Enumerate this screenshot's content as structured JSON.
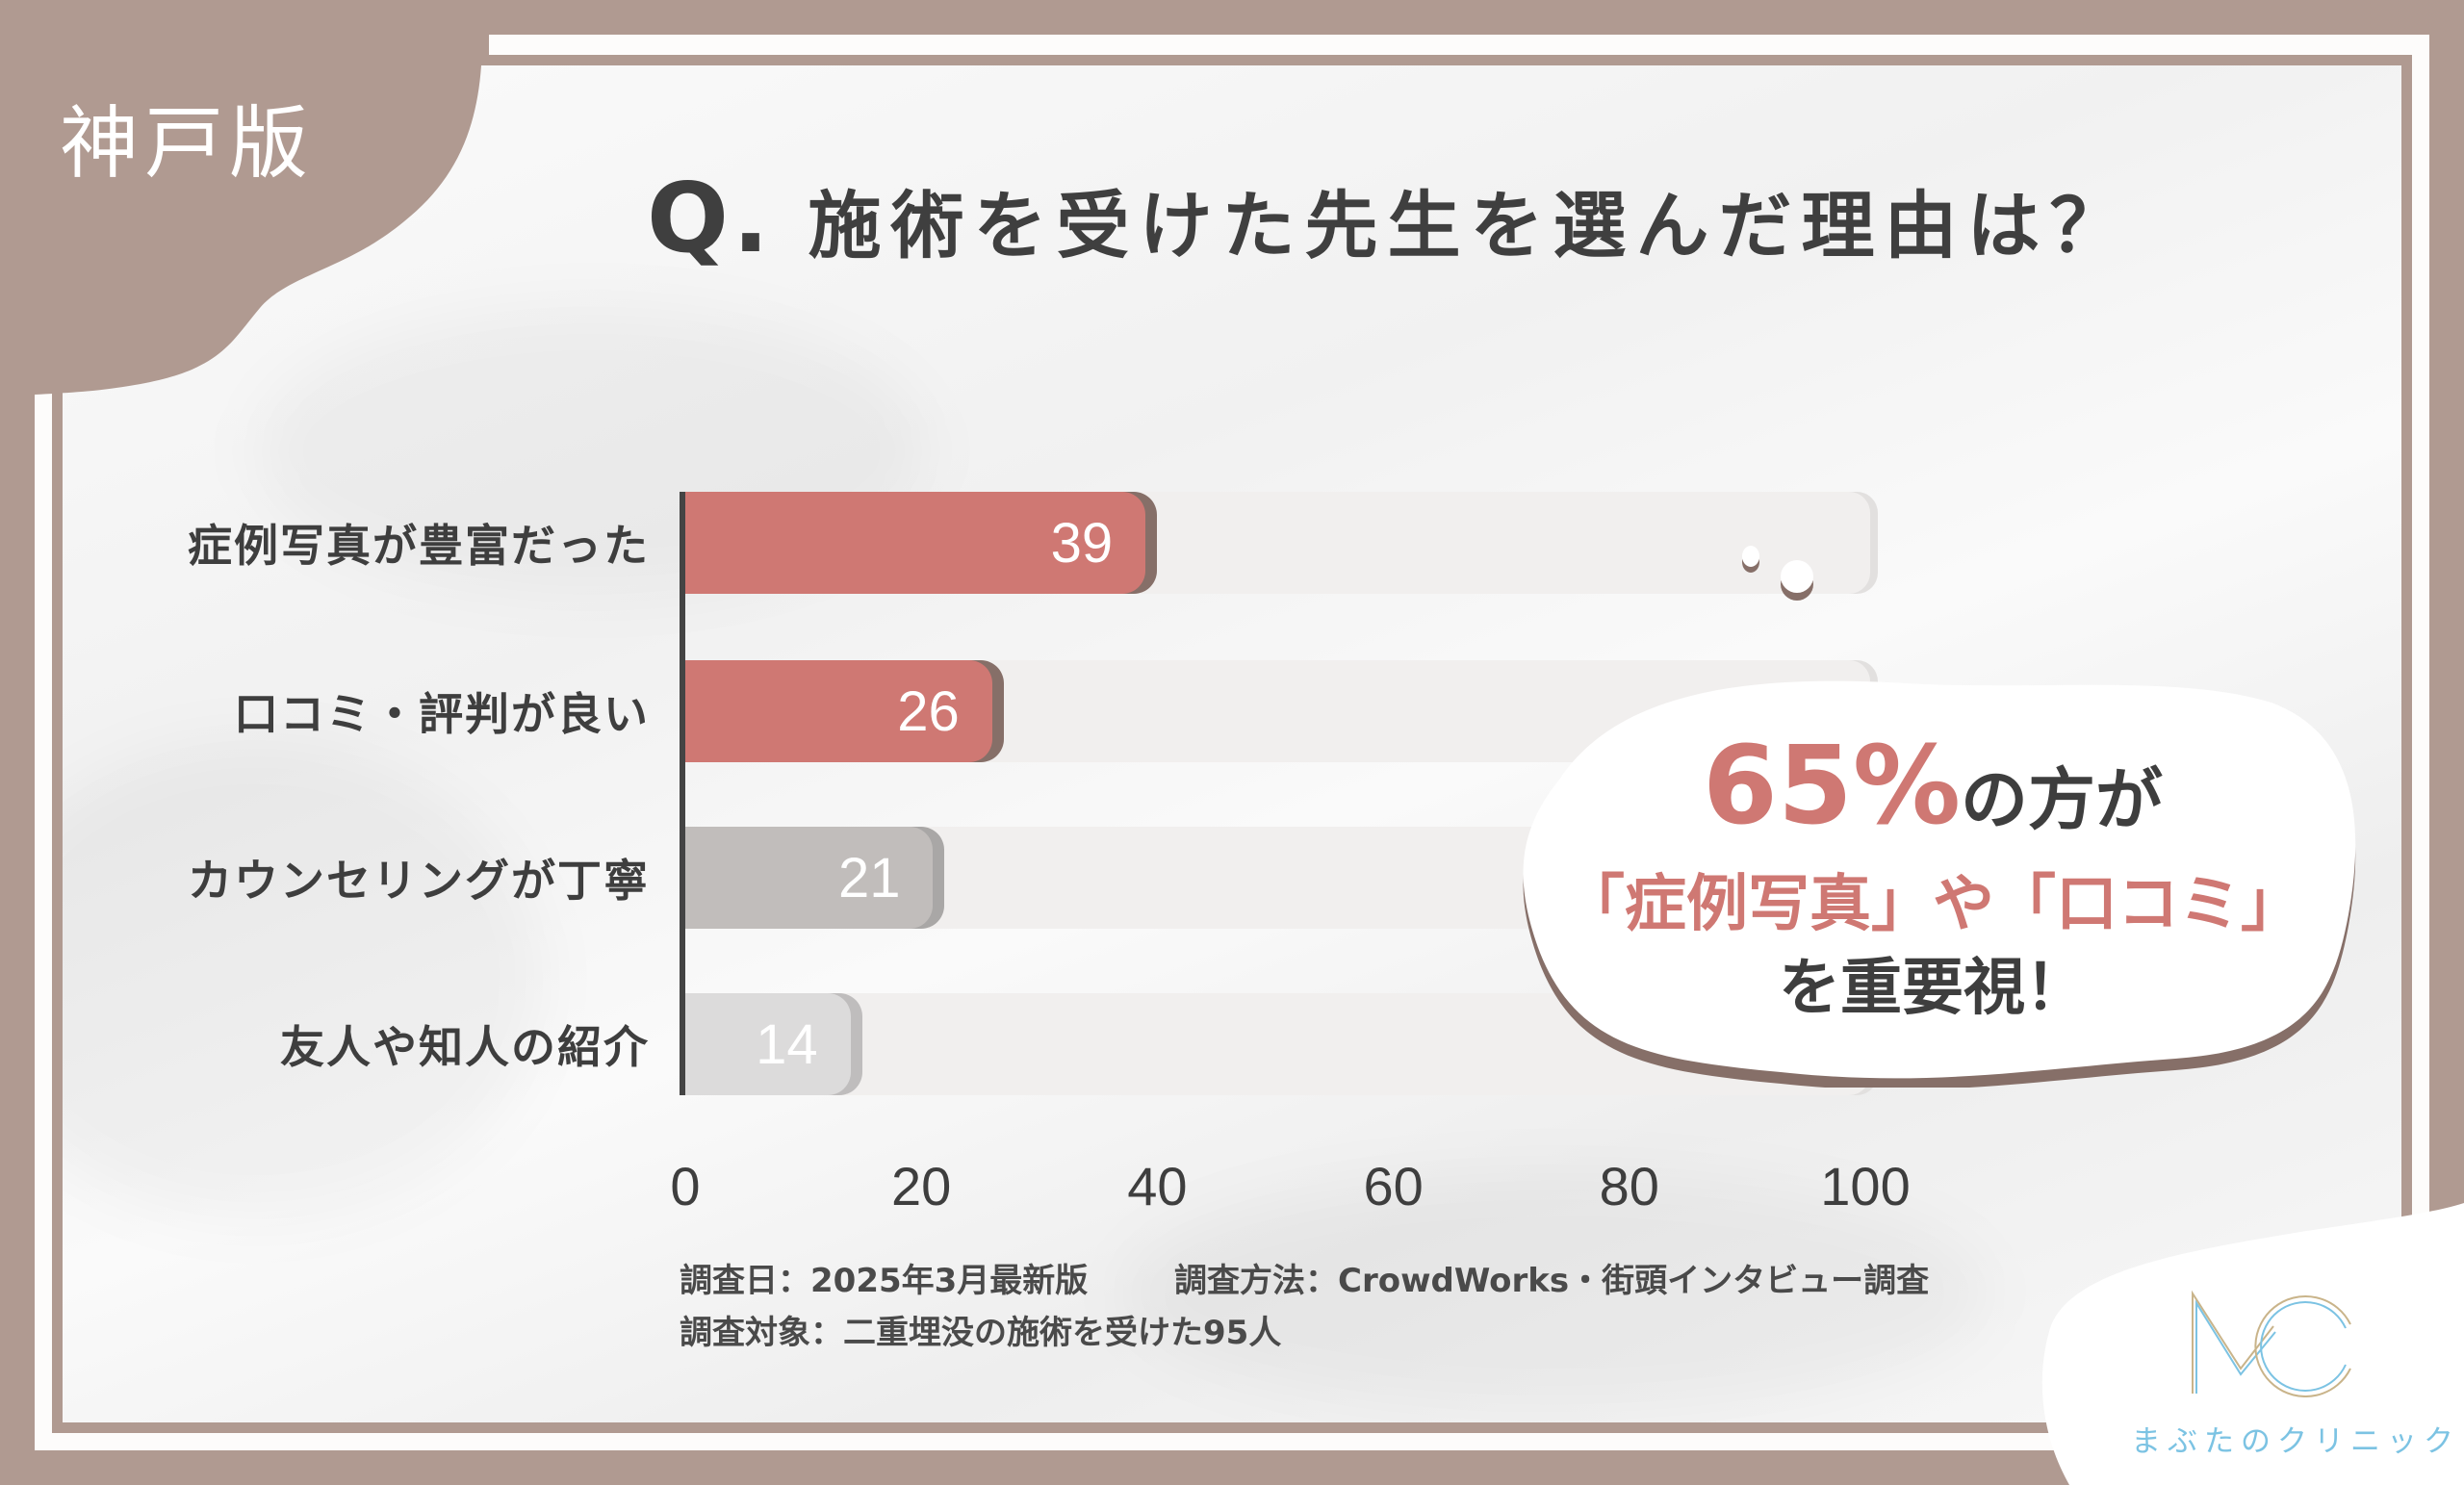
{
  "header": {
    "region_tag": "神戸版",
    "title_q": "Q.",
    "title_text": "施術を受けた先生を選んだ理由は？"
  },
  "chart_data": {
    "type": "bar",
    "orientation": "horizontal",
    "title": "Q. 施術を受けた先生を選んだ理由は？",
    "categories": [
      "症例写真が豊富だった",
      "口コミ・評判が良い",
      "カウンセリングが丁寧",
      "友人や知人の紹介"
    ],
    "values": [
      39,
      26,
      21,
      14
    ],
    "value_labels": [
      "39",
      "26",
      "21",
      "14"
    ],
    "bar_colors": [
      "#cf7873",
      "#cf7873",
      "#c1bdbb",
      "#dcdbdb"
    ],
    "shadow_colors": [
      "#866f68",
      "#866f68",
      "#a9a7a6",
      "#bfbdbd"
    ],
    "xlabel": "",
    "ylabel": "",
    "xlim": [
      0,
      100
    ],
    "xticks": [
      "0",
      "20",
      "40",
      "60",
      "80",
      "100"
    ],
    "grid": false,
    "legend": null
  },
  "callout": {
    "line1_accent": "65%",
    "line1_rest": "の方が",
    "line2": "「症例写真」や「口コミ」",
    "line3": "を重要視！"
  },
  "footer": {
    "survey_date": "調査日：2025年3月最新版",
    "survey_method": "調査方法：CrowdWorks・街頭インタビュー調査",
    "survey_target": "調査対象：二重埋没の施術を受けた95人"
  },
  "logo": {
    "monogram": "MC",
    "name": "まぶたのクリニック"
  },
  "colors": {
    "frame": "#b09a91",
    "accent": "#cf7873",
    "text_dark": "#3e3e3e",
    "logo_blue": "#7cc3e3",
    "logo_gold": "#c9b48a"
  }
}
